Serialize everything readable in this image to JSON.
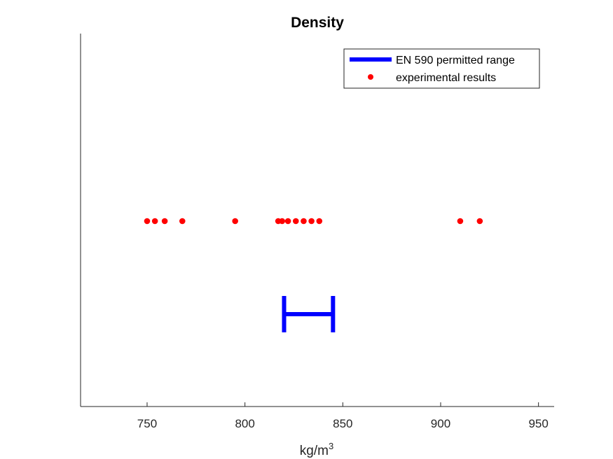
{
  "chart_data": {
    "type": "scatter",
    "title": "Density",
    "xlabel": {
      "base": "kg/m",
      "superscript": "3"
    },
    "ylabel": "",
    "xlim": [
      716,
      958
    ],
    "xticks": [
      750,
      800,
      850,
      900,
      950
    ],
    "grid": false,
    "legend": {
      "placement": "top-right",
      "entries": [
        {
          "label": "EN 590 permitted range",
          "color": "#0000FF",
          "marker": "line"
        },
        {
          "label": "experimental results",
          "color": "#FF0000",
          "marker": "dot"
        }
      ]
    },
    "series": [
      {
        "name": "EN 590 permitted range",
        "kind": "range",
        "color": "#0000FF",
        "min": 820,
        "max": 845
      },
      {
        "name": "experimental results",
        "kind": "points",
        "color": "#FF0000",
        "values": [
          750,
          754,
          759,
          768,
          795,
          817,
          819,
          822,
          826,
          830,
          834,
          838,
          910,
          920
        ]
      }
    ]
  }
}
